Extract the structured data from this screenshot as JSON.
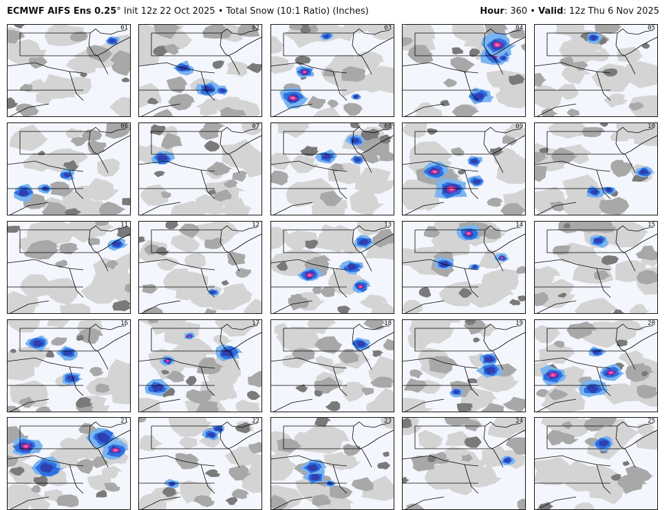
{
  "header": {
    "model": "ECMWF AIFS Ens 0.25",
    "degree": "°",
    "init_text": "Init 12z 22 Oct 2025",
    "bullet": "•",
    "product": "Total Snow (10:1 Ratio) (Inches)",
    "hour_label": "Hour",
    "hour_value": ": 360",
    "valid_label": "Valid",
    "valid_value": ": 12z Thu 6 Nov 2025"
  },
  "colors": {
    "background": "#f4f6fd",
    "light_gray": "#d4d4d4",
    "mid_gray": "#a8a8a8",
    "dark_gray": "#7a7a7a",
    "light_blue": "#7ab4f0",
    "blue": "#2f6fe0",
    "dark_blue": "#2f3fb0",
    "purple": "#8a2fb0",
    "magenta": "#e0308a",
    "pink": "#f47ab8",
    "borders": "#000000"
  },
  "panels": [
    {
      "label": "01",
      "intensity": "light"
    },
    {
      "label": "06",
      "intensity": "moderate"
    },
    {
      "label": "11",
      "intensity": "light"
    },
    {
      "label": "16",
      "intensity": "moderate"
    },
    {
      "label": "21",
      "intensity": "heavy"
    },
    {
      "label": "02",
      "intensity": "moderate"
    },
    {
      "label": "07",
      "intensity": "light"
    },
    {
      "label": "12",
      "intensity": "light"
    },
    {
      "label": "17",
      "intensity": "heavy"
    },
    {
      "label": "22",
      "intensity": "moderate"
    },
    {
      "label": "03",
      "intensity": "heavy"
    },
    {
      "label": "08",
      "intensity": "moderate"
    },
    {
      "label": "13",
      "intensity": "heavy"
    },
    {
      "label": "18",
      "intensity": "light"
    },
    {
      "label": "23",
      "intensity": "moderate"
    },
    {
      "label": "04",
      "intensity": "heavy"
    },
    {
      "label": "09",
      "intensity": "heavy"
    },
    {
      "label": "14",
      "intensity": "heavy"
    },
    {
      "label": "19",
      "intensity": "moderate"
    },
    {
      "label": "24",
      "intensity": "light"
    },
    {
      "label": "05",
      "intensity": "light"
    },
    {
      "label": "10",
      "intensity": "moderate"
    },
    {
      "label": "15",
      "intensity": "light"
    },
    {
      "label": "20",
      "intensity": "heavy"
    },
    {
      "label": "25",
      "intensity": "light"
    }
  ]
}
